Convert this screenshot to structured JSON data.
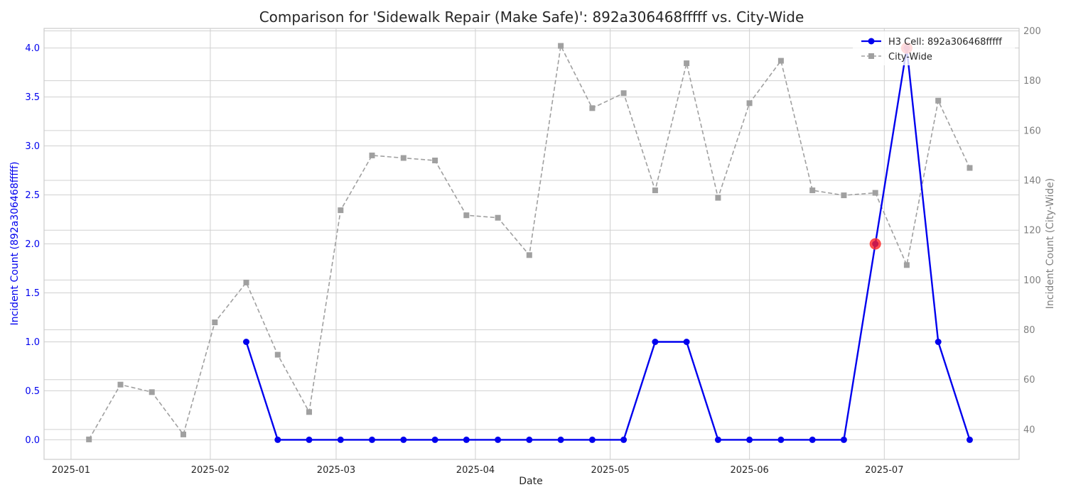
{
  "chart_data": {
    "type": "line",
    "title": "Comparison for 'Sidewalk Repair (Make Safe)': 892a306468fffff vs. City-Wide",
    "xlabel": "Date",
    "ylabel_left": "Incident Count (892a306468fffff)",
    "ylabel_right": "Incident Count (City-Wide)",
    "ylim_left": [
      -0.2,
      4.2
    ],
    "ylim_right": [
      28,
      201
    ],
    "yticks_left": [
      0.0,
      0.5,
      1.0,
      1.5,
      2.0,
      2.5,
      3.0,
      3.5,
      4.0
    ],
    "yticks_right": [
      40,
      60,
      80,
      100,
      120,
      140,
      160,
      180,
      200
    ],
    "xlim": [
      "2024-12-26",
      "2025-07-31"
    ],
    "xticks": [
      "2025-01-01",
      "2025-02-01",
      "2025-03-01",
      "2025-04-01",
      "2025-05-01",
      "2025-06-01",
      "2025-07-01"
    ],
    "xtick_labels": [
      "2025-01",
      "2025-02",
      "2025-03",
      "2025-04",
      "2025-05",
      "2025-06",
      "2025-07"
    ],
    "grid": true,
    "legend_position": "top-right",
    "colors": {
      "cell": "#0000ee",
      "city": "#a0a0a0",
      "highlight": "#ff2020"
    },
    "series": [
      {
        "name": "H3 Cell: 892a306468fffff",
        "axis": "left",
        "x": [
          "2025-02-09",
          "2025-02-16",
          "2025-02-23",
          "2025-03-02",
          "2025-03-09",
          "2025-03-16",
          "2025-03-23",
          "2025-03-30",
          "2025-04-06",
          "2025-04-13",
          "2025-04-20",
          "2025-04-27",
          "2025-05-04",
          "2025-05-11",
          "2025-05-18",
          "2025-05-25",
          "2025-06-01",
          "2025-06-08",
          "2025-06-15",
          "2025-06-22",
          "2025-06-29",
          "2025-07-06",
          "2025-07-13",
          "2025-07-20"
        ],
        "values": [
          1,
          0,
          0,
          0,
          0,
          0,
          0,
          0,
          0,
          0,
          0,
          0,
          0,
          1,
          1,
          0,
          0,
          0,
          0,
          0,
          2,
          4,
          1,
          0
        ]
      },
      {
        "name": "City-Wide",
        "axis": "right",
        "x": [
          "2025-01-05",
          "2025-01-12",
          "2025-01-19",
          "2025-01-26",
          "2025-02-02",
          "2025-02-09",
          "2025-02-16",
          "2025-02-23",
          "2025-03-02",
          "2025-03-09",
          "2025-03-16",
          "2025-03-23",
          "2025-03-30",
          "2025-04-06",
          "2025-04-13",
          "2025-04-20",
          "2025-04-27",
          "2025-05-04",
          "2025-05-11",
          "2025-05-18",
          "2025-05-25",
          "2025-06-01",
          "2025-06-08",
          "2025-06-15",
          "2025-06-22",
          "2025-06-29",
          "2025-07-06",
          "2025-07-13",
          "2025-07-20"
        ],
        "values": [
          36,
          58,
          55,
          38,
          83,
          99,
          70,
          47,
          128,
          150,
          149,
          148,
          126,
          125,
          110,
          194,
          169,
          175,
          136,
          187,
          133,
          171,
          188,
          136,
          134,
          135,
          106,
          172,
          145
        ]
      }
    ],
    "highlights": [
      {
        "x": "2025-06-29",
        "value": 2
      },
      {
        "x": "2025-07-06",
        "value": 4
      }
    ]
  }
}
